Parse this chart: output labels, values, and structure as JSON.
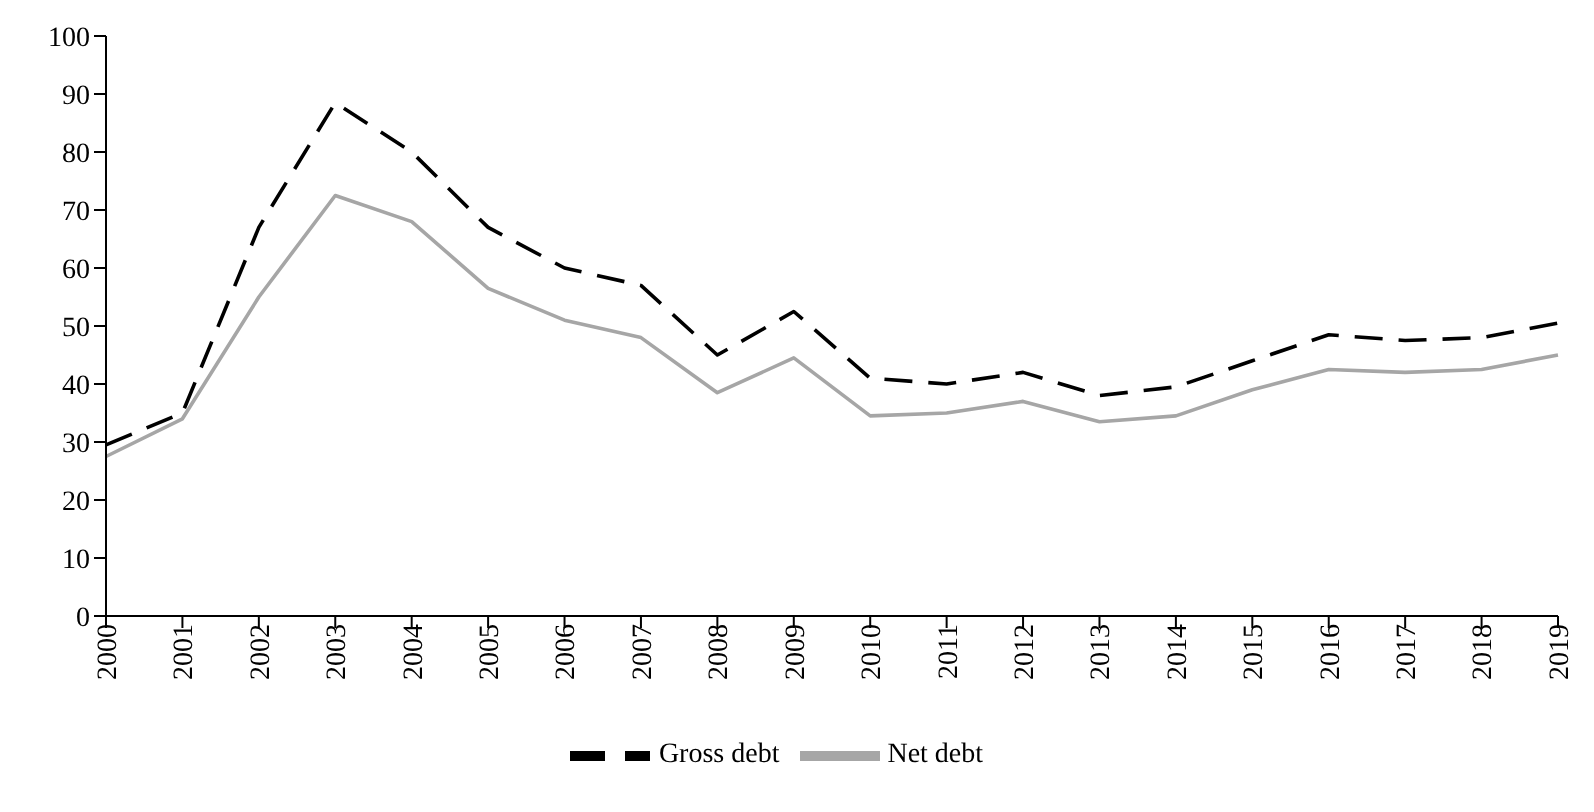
{
  "chart_data": {
    "type": "line",
    "categories": [
      "2000",
      "2001",
      "2002",
      "2003",
      "2004",
      "2005",
      "2006",
      "2007",
      "2008",
      "2009",
      "2010",
      "2011",
      "2012",
      "2013",
      "2014",
      "2015",
      "2016",
      "2017",
      "2018",
      "2019"
    ],
    "series": [
      {
        "name": "Gross debt",
        "color": "#000000",
        "line_style": "dashed",
        "values": [
          29.5,
          35,
          67,
          88.5,
          80,
          67,
          60,
          57,
          45,
          52.5,
          41,
          40,
          42,
          38,
          39.5,
          44,
          48.5,
          47.5,
          48,
          50.5
        ]
      },
      {
        "name": "Net debt",
        "color": "#a6a6a6",
        "line_style": "solid",
        "values": [
          27.5,
          34,
          55,
          72.5,
          68,
          56.5,
          51,
          48,
          38.5,
          44.5,
          34.5,
          35,
          37,
          33.5,
          34.5,
          39,
          42.5,
          42,
          42.5,
          45
        ]
      }
    ],
    "ylim": [
      0,
      100
    ],
    "yticks": [
      0,
      10,
      20,
      30,
      40,
      50,
      60,
      70,
      80,
      90,
      100
    ],
    "grid": false,
    "legend": "bottom",
    "marker": "none"
  }
}
